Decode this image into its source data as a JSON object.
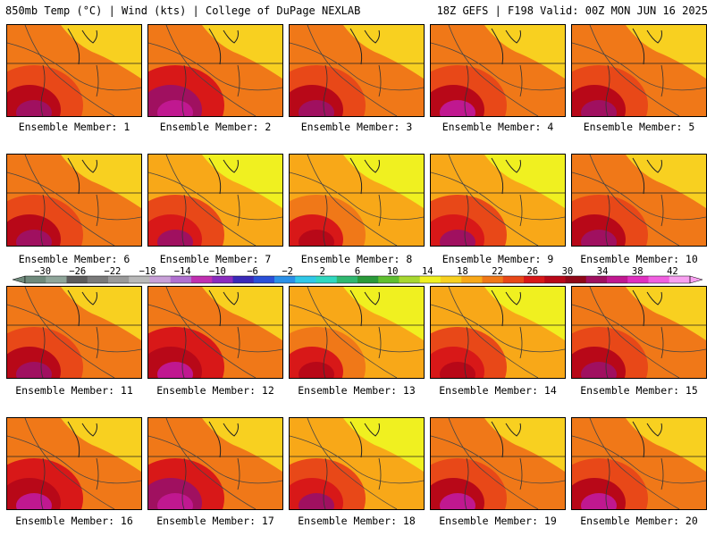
{
  "header": {
    "left": "850mb Temp (°C) | Wind (kts) | College of DuPage NEXLAB",
    "right": "18Z GEFS | F198 Valid: 00Z MON JUN 16 2025"
  },
  "members": [
    {
      "label": "Ensemble Member: 1",
      "warmth": 0.55
    },
    {
      "label": "Ensemble Member: 2",
      "warmth": 0.75
    },
    {
      "label": "Ensemble Member: 3",
      "warmth": 0.55
    },
    {
      "label": "Ensemble Member: 4",
      "warmth": 0.6
    },
    {
      "label": "Ensemble Member: 5",
      "warmth": 0.5
    },
    {
      "label": "Ensemble Member: 6",
      "warmth": 0.55
    },
    {
      "label": "Ensemble Member: 7",
      "warmth": 0.45
    },
    {
      "label": "Ensemble Member: 8",
      "warmth": 0.3
    },
    {
      "label": "Ensemble Member: 9",
      "warmth": 0.45
    },
    {
      "label": "Ensemble Member: 10",
      "warmth": 0.5
    },
    {
      "label": "Ensemble Member: 11",
      "warmth": 0.5
    },
    {
      "label": "Ensemble Member: 12",
      "warmth": 0.65
    },
    {
      "label": "Ensemble Member: 13",
      "warmth": 0.35
    },
    {
      "label": "Ensemble Member: 14",
      "warmth": 0.4
    },
    {
      "label": "Ensemble Member: 15",
      "warmth": 0.5
    },
    {
      "label": "Ensemble Member: 16",
      "warmth": 0.65
    },
    {
      "label": "Ensemble Member: 17",
      "warmth": 0.7
    },
    {
      "label": "Ensemble Member: 18",
      "warmth": 0.45
    },
    {
      "label": "Ensemble Member: 19",
      "warmth": 0.6
    },
    {
      "label": "Ensemble Member: 20",
      "warmth": 0.6
    }
  ],
  "colorbar": {
    "ticks": [
      "-30",
      "-26",
      "-22",
      "-18",
      "-14",
      "-10",
      "-6",
      "-2",
      "2",
      "6",
      "10",
      "14",
      "18",
      "22",
      "26",
      "30",
      "34",
      "38",
      "42"
    ],
    "colors": [
      "#6f8a7c",
      "#8fa69a",
      "#5c5c5c",
      "#7a7a7a",
      "#9a9a9a",
      "#b9b9b9",
      "#c8a0d8",
      "#b070d0",
      "#c030b0",
      "#8a2cbe",
      "#3a2ab8",
      "#2a50d8",
      "#2a90e8",
      "#30c8e8",
      "#30d8c0",
      "#30b870",
      "#2a9a3a",
      "#60c030",
      "#a8d830",
      "#f0f020",
      "#f8d020",
      "#f8a818",
      "#f07818",
      "#e84818",
      "#d81818",
      "#b80818",
      "#900818",
      "#a01060",
      "#c01890",
      "#e030c0",
      "#f060e0",
      "#f8a0f0"
    ]
  }
}
